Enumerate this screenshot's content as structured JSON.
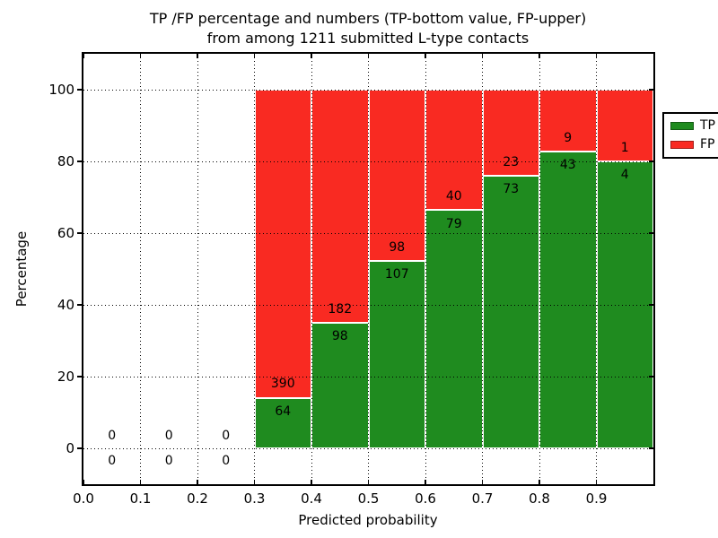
{
  "figure": {
    "title_line1": "TP /FP percentage and numbers (TP-bottom value, FP-upper)",
    "title_line2": "from among 1211 submitted L-type contacts"
  },
  "chart_data": {
    "type": "bar",
    "stacked": true,
    "title": "TP /FP percentage and numbers (TP-bottom value, FP-upper) from among 1211 submitted L-type contacts",
    "xlabel": "Predicted probability",
    "ylabel": "Percentage",
    "xlim": [
      0.0,
      1.0
    ],
    "ylim": [
      -10,
      110
    ],
    "xtick_values": [
      0.0,
      0.1,
      0.2,
      0.3,
      0.4,
      0.5,
      0.6,
      0.7,
      0.8,
      0.9
    ],
    "xtick_labels": [
      "0.0",
      "0.1",
      "0.2",
      "0.3",
      "0.4",
      "0.5",
      "0.6",
      "0.7",
      "0.8",
      "0.9"
    ],
    "ytick_values": [
      0,
      20,
      40,
      60,
      80,
      100
    ],
    "ytick_labels": [
      "0",
      "20",
      "40",
      "60",
      "80",
      "100"
    ],
    "grid": true,
    "total_submitted": 1211,
    "legend": {
      "position": "upper right",
      "items": [
        {
          "label": "TP",
          "color": "#1f8b1f"
        },
        {
          "label": "FP",
          "color": "#f92a22"
        }
      ]
    },
    "bins": [
      {
        "x0": 0.0,
        "x1": 0.1,
        "tp": 0,
        "fp": 0,
        "tp_pct": 0
      },
      {
        "x0": 0.1,
        "x1": 0.2,
        "tp": 0,
        "fp": 0,
        "tp_pct": 0
      },
      {
        "x0": 0.2,
        "x1": 0.3,
        "tp": 0,
        "fp": 0,
        "tp_pct": 0
      },
      {
        "x0": 0.3,
        "x1": 0.4,
        "tp": 64,
        "fp": 390,
        "tp_pct": 14.1
      },
      {
        "x0": 0.4,
        "x1": 0.5,
        "tp": 98,
        "fp": 182,
        "tp_pct": 35.0
      },
      {
        "x0": 0.5,
        "x1": 0.6,
        "tp": 107,
        "fp": 98,
        "tp_pct": 52.2
      },
      {
        "x0": 0.6,
        "x1": 0.7,
        "tp": 79,
        "fp": 40,
        "tp_pct": 66.4
      },
      {
        "x0": 0.7,
        "x1": 0.8,
        "tp": 73,
        "fp": 23,
        "tp_pct": 76.0
      },
      {
        "x0": 0.8,
        "x1": 0.9,
        "tp": 43,
        "fp": 9,
        "tp_pct": 82.7
      },
      {
        "x0": 0.9,
        "x1": 1.0,
        "tp": 4,
        "fp": 1,
        "tp_pct": 80.0
      }
    ],
    "colors": {
      "tp": "#1f8b1f",
      "fp": "#f92a22",
      "grid": "#000000",
      "background": "#ffffff"
    }
  }
}
